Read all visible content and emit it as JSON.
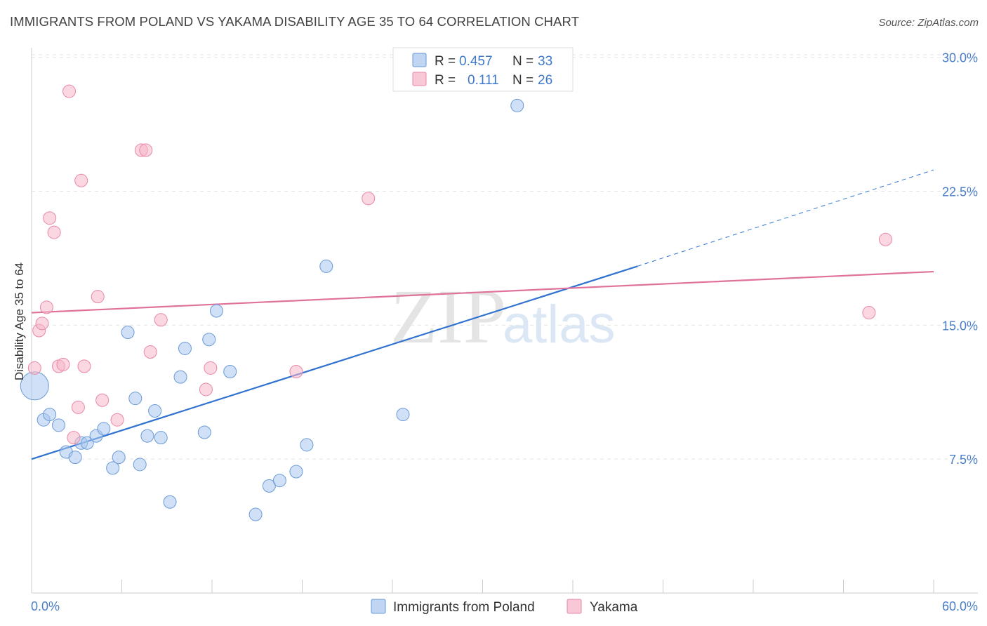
{
  "header": {
    "title": "IMMIGRANTS FROM POLAND VS YAKAMA DISABILITY AGE 35 TO 64 CORRELATION CHART",
    "source": "Source: ZipAtlas.com"
  },
  "watermark": {
    "zip": "ZIP",
    "atlas": "atlas"
  },
  "legend": {
    "rows": [
      {
        "r_label": "R =",
        "r_value": "0.457",
        "n_label": "N =",
        "n_value": "33",
        "color": "#a9c7ee"
      },
      {
        "r_label": "R =",
        "r_value": "0.111",
        "n_label": "N =",
        "n_value": "26",
        "color": "#f5b6c9"
      }
    ]
  },
  "chart_data": {
    "type": "scatter",
    "title": "IMMIGRANTS FROM POLAND VS YAKAMA DISABILITY AGE 35 TO 64 CORRELATION CHART",
    "xlabel": "",
    "ylabel": "Disability Age 35 to 64",
    "xlim": [
      0,
      60
    ],
    "ylim": [
      0,
      31
    ],
    "x_tick_labels": {
      "min": "0.0%",
      "max": "60.0%"
    },
    "y_ticks": [
      7.5,
      15.0,
      22.5,
      30.0
    ],
    "y_tick_labels": [
      "7.5%",
      "15.0%",
      "22.5%",
      "30.0%"
    ],
    "grid": true,
    "legend_position": "bottom",
    "series": [
      {
        "name": "Immigrants from Poland",
        "color": "#a9c7ee",
        "edge": "#6a9ad6",
        "line_color": "#2f72d0",
        "trend": {
          "x0": 0,
          "y0": 7.5,
          "x1": 40.3,
          "y1": 18.3,
          "dash_to_x": 60,
          "dash_to_y": 23.7
        },
        "points": [
          [
            0.2,
            11.6,
            "large"
          ],
          [
            0.8,
            9.7
          ],
          [
            1.2,
            10.0
          ],
          [
            1.8,
            9.4
          ],
          [
            2.3,
            7.9
          ],
          [
            2.9,
            7.6
          ],
          [
            3.3,
            8.4
          ],
          [
            3.7,
            8.4
          ],
          [
            4.3,
            8.8
          ],
          [
            4.8,
            9.2
          ],
          [
            5.4,
            7.0
          ],
          [
            5.8,
            7.6
          ],
          [
            6.4,
            14.6
          ],
          [
            6.9,
            10.9
          ],
          [
            7.2,
            7.2
          ],
          [
            7.7,
            8.8
          ],
          [
            8.2,
            10.2
          ],
          [
            8.6,
            8.7
          ],
          [
            9.2,
            5.1
          ],
          [
            9.9,
            12.1
          ],
          [
            10.2,
            13.7
          ],
          [
            11.5,
            9.0
          ],
          [
            11.8,
            14.2
          ],
          [
            12.3,
            15.8
          ],
          [
            13.2,
            12.4
          ],
          [
            14.9,
            4.4
          ],
          [
            15.8,
            6.0
          ],
          [
            16.5,
            6.3
          ],
          [
            17.6,
            6.8
          ],
          [
            18.3,
            8.3
          ],
          [
            19.6,
            18.3
          ],
          [
            24.7,
            10.0
          ],
          [
            32.3,
            27.3
          ]
        ]
      },
      {
        "name": "Yakama",
        "color": "#f5b6c9",
        "edge": "#e888a6",
        "line_color": "#e0719a",
        "trend": {
          "x0": 0,
          "y0": 15.7,
          "x1": 60,
          "y1": 18.0
        },
        "points": [
          [
            0.2,
            12.6
          ],
          [
            0.5,
            14.7
          ],
          [
            0.7,
            15.1
          ],
          [
            1.0,
            16.0
          ],
          [
            1.2,
            21.0
          ],
          [
            1.5,
            20.2
          ],
          [
            1.8,
            12.7
          ],
          [
            2.1,
            12.8
          ],
          [
            2.5,
            28.1
          ],
          [
            2.8,
            8.7
          ],
          [
            3.1,
            10.4
          ],
          [
            3.3,
            23.1
          ],
          [
            3.5,
            12.7
          ],
          [
            4.4,
            16.6
          ],
          [
            4.7,
            10.8
          ],
          [
            5.7,
            9.7
          ],
          [
            7.3,
            24.8
          ],
          [
            7.6,
            24.8
          ],
          [
            7.9,
            13.5
          ],
          [
            8.6,
            15.3
          ],
          [
            11.6,
            11.4
          ],
          [
            11.9,
            12.6
          ],
          [
            17.6,
            12.4
          ],
          [
            22.4,
            22.1
          ],
          [
            55.7,
            15.7
          ],
          [
            56.8,
            19.8
          ]
        ]
      }
    ]
  }
}
